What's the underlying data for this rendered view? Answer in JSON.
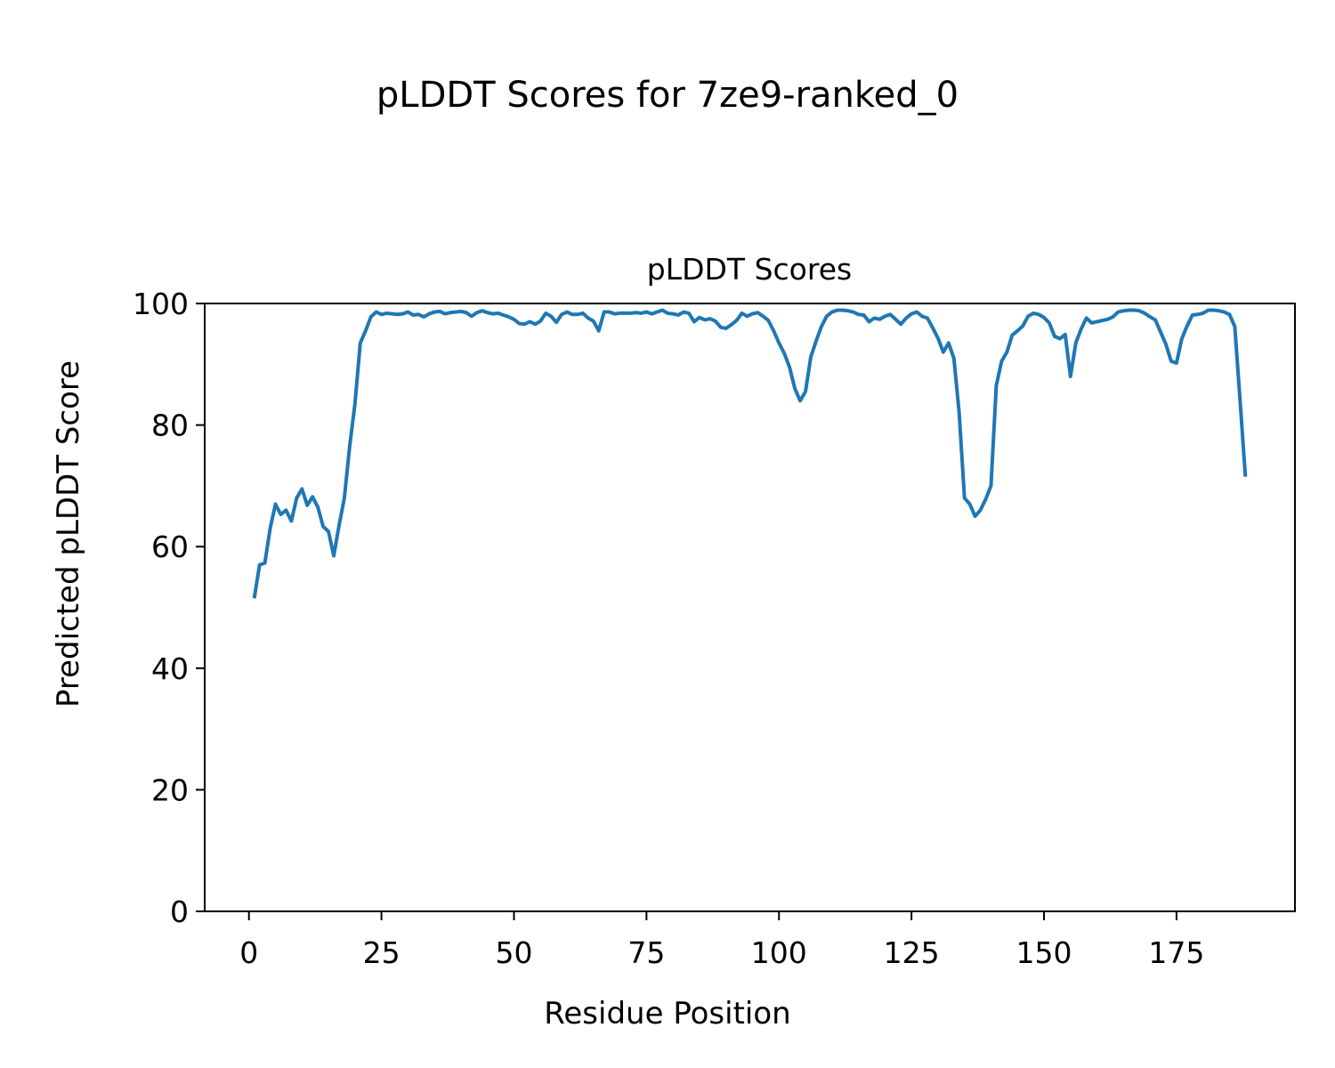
{
  "chart_data": {
    "type": "line",
    "title": "pLDDT Scores for 7ze9-ranked_0",
    "subtitle": "pLDDT Scores",
    "x_label": "Residue Position",
    "y_label": "Predicted pLDDT Score",
    "x": [
      1,
      2,
      3,
      4,
      5,
      6,
      7,
      8,
      9,
      10,
      11,
      12,
      13,
      14,
      15,
      16,
      17,
      18,
      19,
      20,
      21,
      22,
      23,
      24,
      25,
      26,
      27,
      28,
      29,
      30,
      31,
      32,
      33,
      34,
      35,
      36,
      37,
      38,
      39,
      40,
      41,
      42,
      43,
      44,
      45,
      46,
      47,
      48,
      49,
      50,
      51,
      52,
      53,
      54,
      55,
      56,
      57,
      58,
      59,
      60,
      61,
      62,
      63,
      64,
      65,
      66,
      67,
      68,
      69,
      70,
      71,
      72,
      73,
      74,
      75,
      76,
      77,
      78,
      79,
      80,
      81,
      82,
      83,
      84,
      85,
      86,
      87,
      88,
      89,
      90,
      91,
      92,
      93,
      94,
      95,
      96,
      97,
      98,
      99,
      100,
      101,
      102,
      103,
      104,
      105,
      106,
      107,
      108,
      109,
      110,
      111,
      112,
      113,
      114,
      115,
      116,
      117,
      118,
      119,
      120,
      121,
      122,
      123,
      124,
      125,
      126,
      127,
      128,
      129,
      130,
      131,
      132,
      133,
      134,
      135,
      136,
      137,
      138,
      139,
      140,
      141,
      142,
      143,
      144,
      145,
      146,
      147,
      148,
      149,
      150,
      151,
      152,
      153,
      154,
      155,
      156,
      157,
      158,
      159,
      160,
      161,
      162,
      163,
      164,
      165,
      166,
      167,
      168,
      169,
      170,
      171,
      172,
      173,
      174,
      175,
      176,
      177,
      178,
      179,
      180,
      181,
      182,
      183,
      184,
      185,
      186,
      187,
      188
    ],
    "series": [
      {
        "name": "pLDDT",
        "color": "#1f77b4",
        "values": [
          51.5,
          57,
          57.3,
          63,
          67,
          65.3,
          66,
          64.2,
          68,
          69.5,
          66.8,
          68.2,
          66.5,
          63.3,
          62.5,
          58.5,
          63.5,
          68,
          76.5,
          83.5,
          93.5,
          95.5,
          97.8,
          98.6,
          98.2,
          98.4,
          98.3,
          98.2,
          98.3,
          98.6,
          98.1,
          98.2,
          97.8,
          98.3,
          98.6,
          98.7,
          98.3,
          98.5,
          98.6,
          98.7,
          98.5,
          97.9,
          98.5,
          98.8,
          98.5,
          98.3,
          98.4,
          98.1,
          97.8,
          97.4,
          96.7,
          96.6,
          97,
          96.6,
          97.1,
          98.4,
          97.9,
          96.9,
          98.2,
          98.6,
          98.2,
          98.2,
          98.4,
          97.6,
          97.1,
          95.5,
          98.6,
          98.6,
          98.3,
          98.4,
          98.4,
          98.4,
          98.5,
          98.4,
          98.6,
          98.3,
          98.6,
          98.9,
          98.4,
          98.3,
          98.1,
          98.6,
          98.4,
          97,
          97.7,
          97.3,
          97.5,
          97.1,
          96.1,
          95.9,
          96.5,
          97.2,
          98.4,
          97.9,
          98.3,
          98.5,
          97.9,
          97.2,
          95.5,
          93.5,
          91.8,
          89.5,
          86,
          84,
          85.5,
          91.2,
          93.8,
          96.2,
          97.9,
          98.6,
          98.9,
          98.9,
          98.8,
          98.6,
          98.2,
          98.1,
          97,
          97.6,
          97.4,
          97.9,
          98.2,
          97.4,
          96.6,
          97.6,
          98.3,
          98.6,
          97.9,
          97.6,
          96,
          94.3,
          92,
          93.5,
          91,
          82,
          68,
          67,
          65,
          66,
          67.8,
          70,
          86.5,
          90.5,
          92,
          94.8,
          95.5,
          96.3,
          97.9,
          98.4,
          98.2,
          97.7,
          96.8,
          94.6,
          94.2,
          94.9,
          88,
          93.5,
          95.8,
          97.6,
          96.8,
          97,
          97.2,
          97.4,
          97.8,
          98.6,
          98.8,
          98.9,
          98.9,
          98.8,
          98.4,
          97.8,
          97.3,
          95.3,
          93.3,
          90.5,
          90.2,
          94.2,
          96.3,
          98.1,
          98.2,
          98.4,
          98.9,
          98.9,
          98.8,
          98.6,
          98.2,
          96.2,
          84,
          71.5
        ]
      }
    ],
    "xlim": [
      -8.35,
      197.35
    ],
    "ylim": [
      0,
      100
    ],
    "xticks": [
      0,
      25,
      50,
      75,
      100,
      125,
      150,
      175
    ],
    "yticks": [
      0,
      20,
      40,
      60,
      80,
      100
    ],
    "grid": false
  }
}
